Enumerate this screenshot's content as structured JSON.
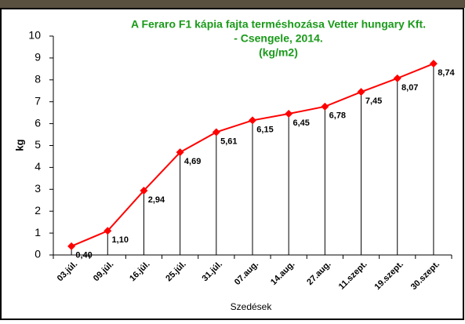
{
  "chart_data": {
    "type": "line",
    "title": [
      "A Feraro F1 kápia fajta terméshozása Vetter hungary Kft.",
      "- Csengele, 2014.",
      "(kg/m2)"
    ],
    "title_color": "#1a9a1a",
    "x_label": "Szedések",
    "y_label": "kg",
    "categories": [
      "03.júl.",
      "09.júl.",
      "16.júl.",
      "25.júl.",
      "31.júl.",
      "07.aug.",
      "14.aug.",
      "27.aug.",
      "11.szept.",
      "19.szept.",
      "30.szept."
    ],
    "series": [
      {
        "color": "#ff0000",
        "values": [
          0.4,
          1.1,
          2.94,
          4.69,
          5.61,
          6.15,
          6.45,
          6.78,
          7.45,
          8.07,
          8.74
        ],
        "value_labels": [
          "0,40",
          "1,10",
          "2,94",
          "4,69",
          "5,61",
          "6,15",
          "6,45",
          "6,78",
          "7,45",
          "8,07",
          "8,74"
        ]
      }
    ],
    "ylim": [
      0,
      10
    ],
    "yticks": [
      0,
      1,
      2,
      3,
      4,
      5,
      6,
      7,
      8,
      9,
      10
    ],
    "drop_lines": true
  }
}
